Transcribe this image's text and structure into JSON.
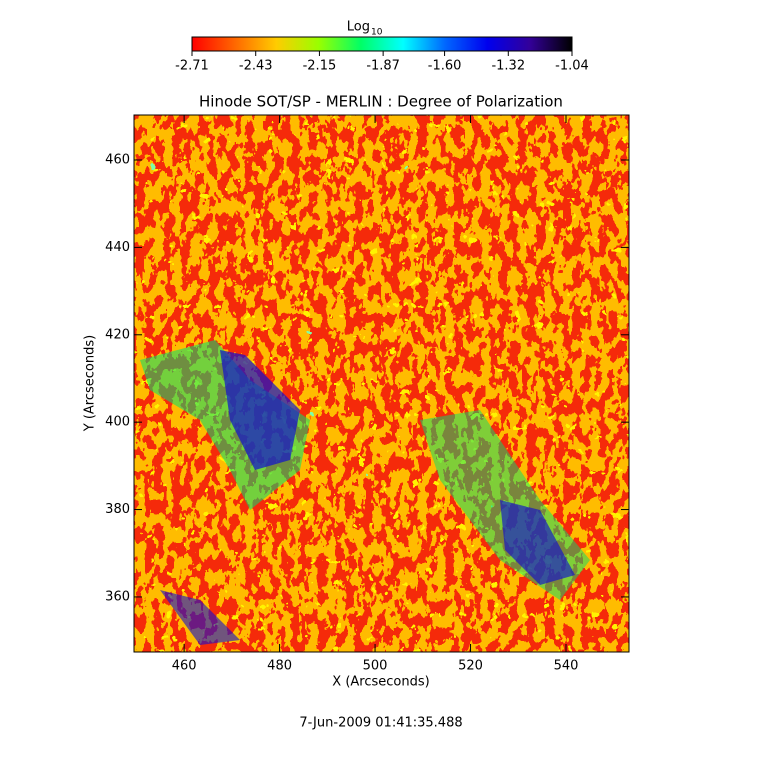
{
  "chart_data": {
    "type": "image",
    "title": "Hinode SOT/SP - MERLIN : Degree of Polarization",
    "xlabel": "X (Arcseconds)",
    "ylabel": "Y (Arcseconds)",
    "footer": "7-Jun-2009 01:41:35.488",
    "xlim": [
      449.5,
      553.2
    ],
    "ylim": [
      347.4,
      470.3
    ],
    "xticks": [
      460,
      480,
      500,
      520,
      540
    ],
    "yticks": [
      360,
      380,
      400,
      420,
      440,
      460
    ],
    "colorbar": {
      "label": "Log",
      "label_sub": "10",
      "lim": [
        -2.71,
        -1.04
      ],
      "ticks": [
        -2.71,
        -2.43,
        -2.15,
        -1.87,
        {
          "value": -1.6,
          "label": "-1.60"
        },
        -1.32,
        -1.04
      ],
      "colormap": [
        "#ff0000",
        "#ff6600",
        "#ffcc00",
        "#99ff00",
        "#00ff66",
        "#00ffff",
        "#0066ff",
        "#0000ee",
        "#330099",
        "#000000"
      ]
    }
  }
}
